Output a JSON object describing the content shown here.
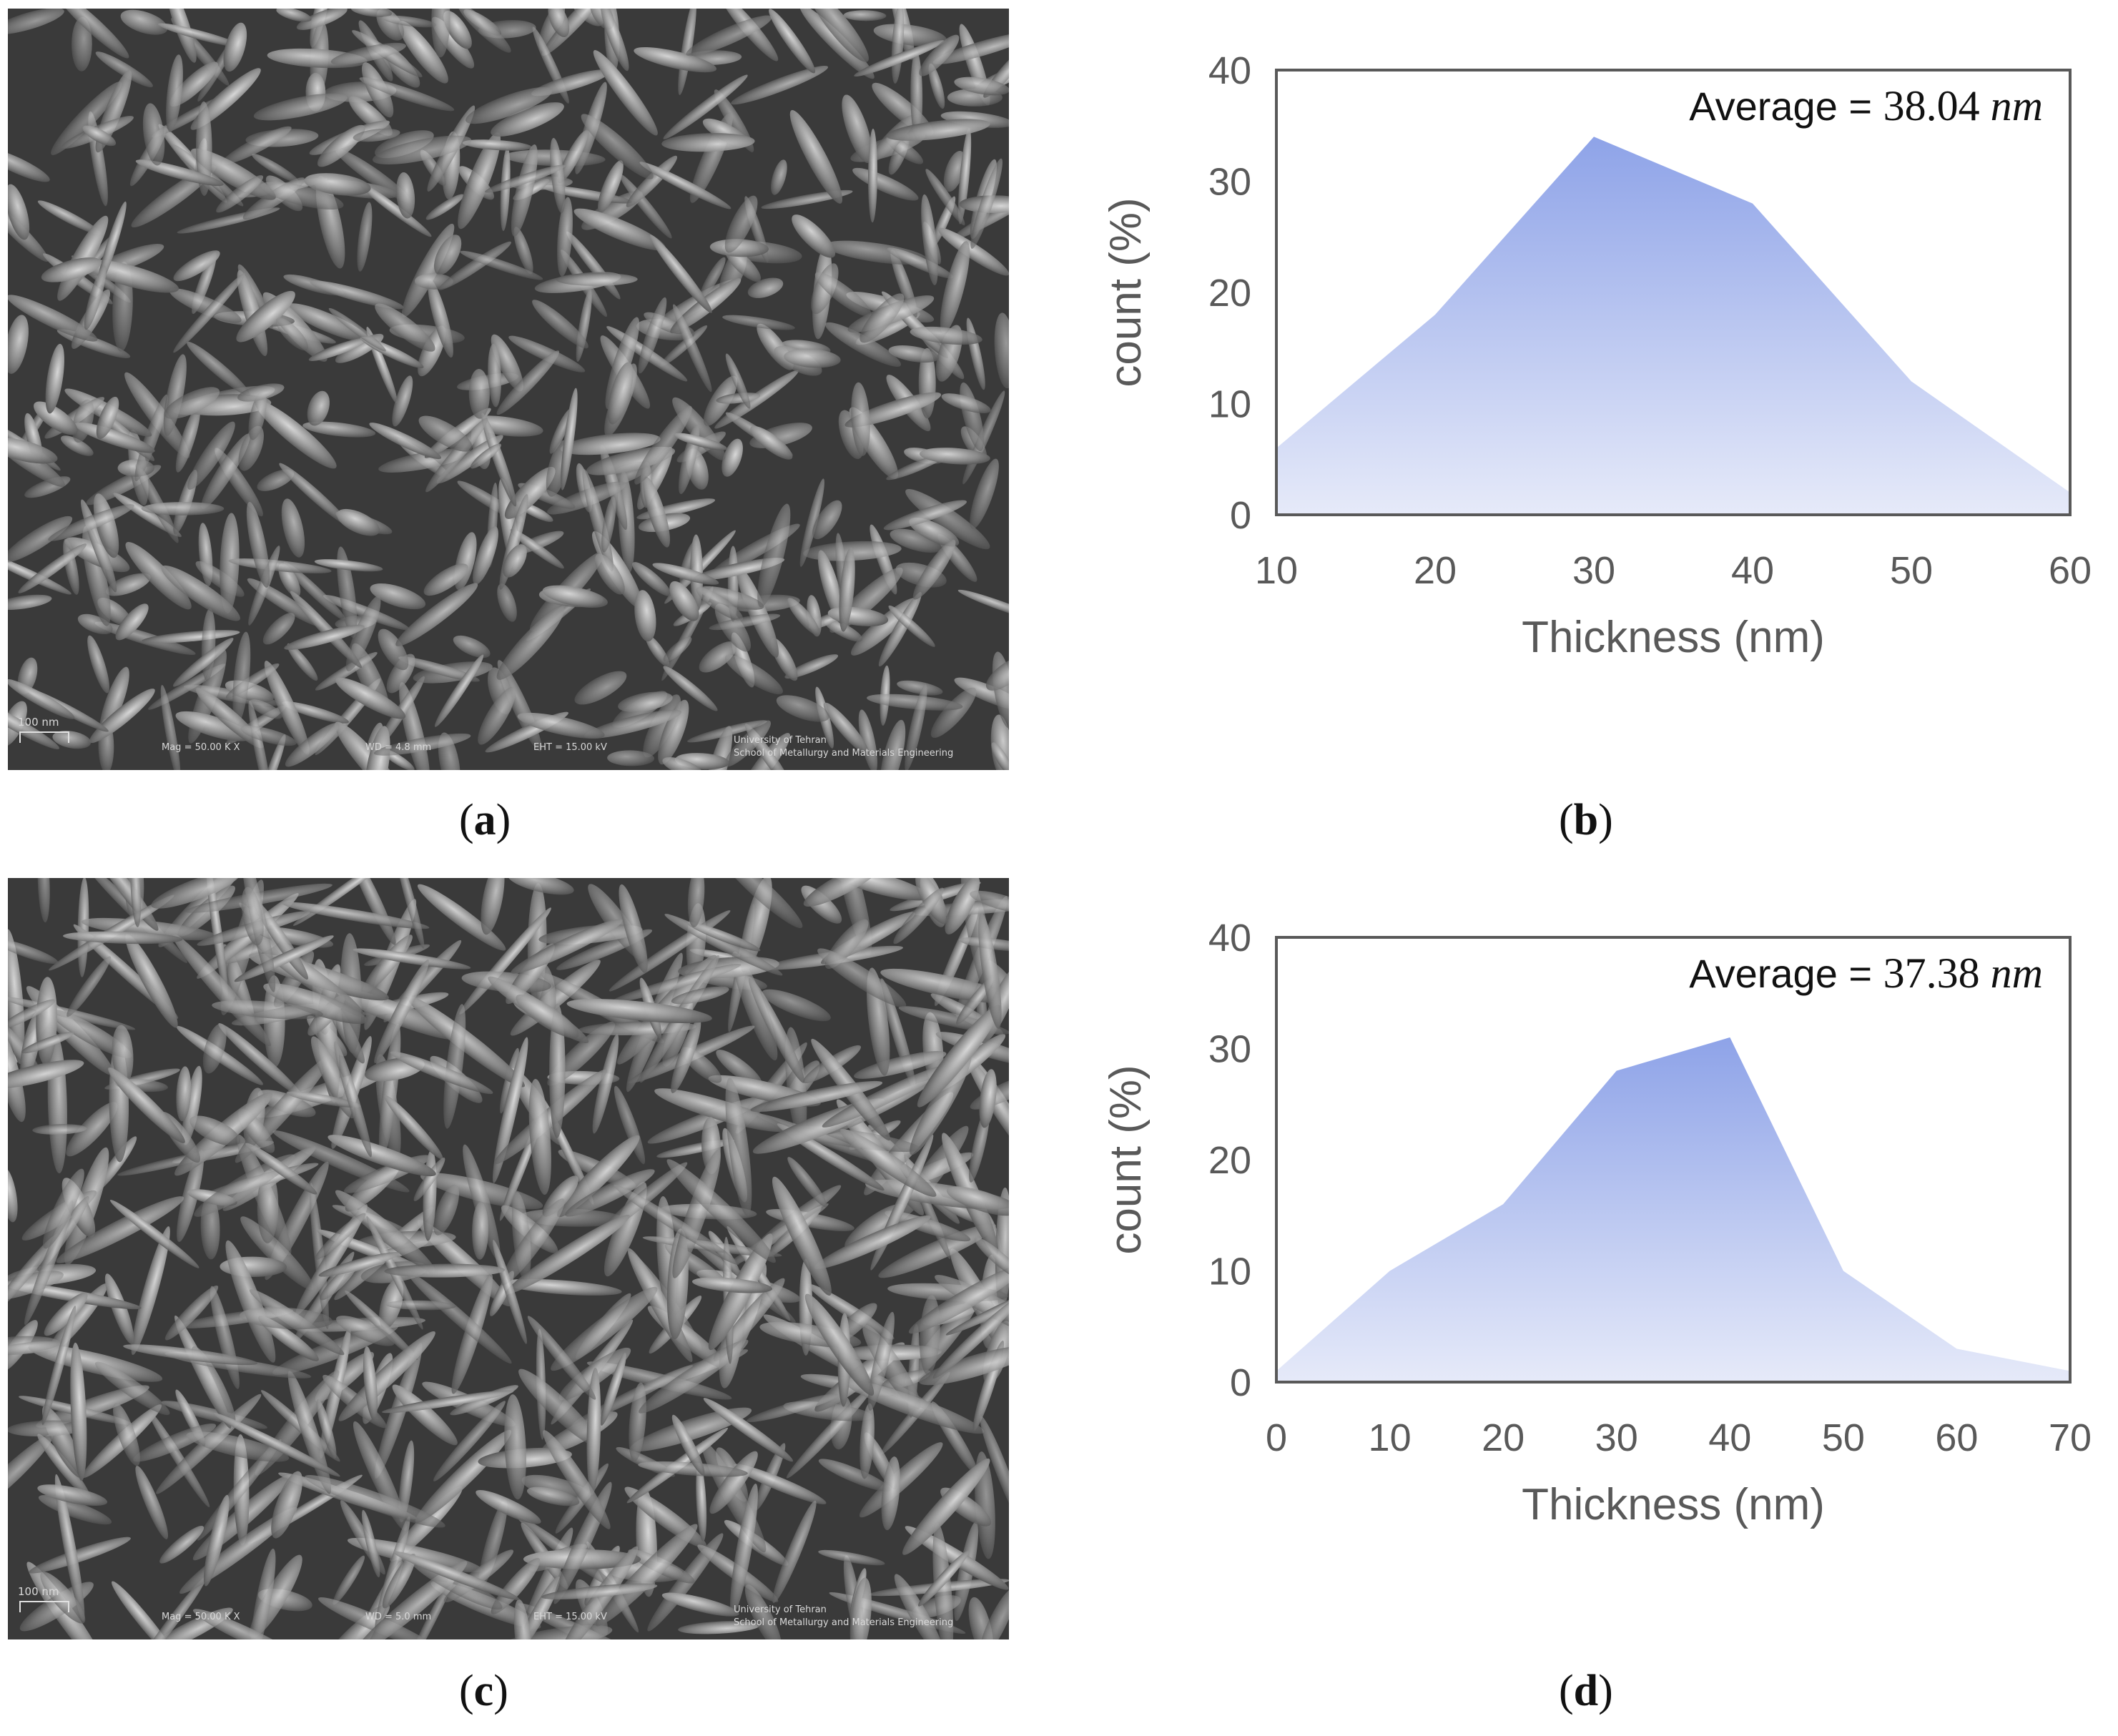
{
  "panels": {
    "a": {
      "label": "a",
      "scale_bar": "100 nm",
      "mag": "Mag = 50.00 K X",
      "wd": "WD = 4.8 mm",
      "eht": "EHT = 15.00 kV",
      "institution_line1": "University of Tehran",
      "institution_line2": "School of Metallurgy and Materials Engineering"
    },
    "b": {
      "label": "b"
    },
    "c": {
      "label": "c",
      "scale_bar": "100 nm",
      "mag": "Mag = 50.00 K X",
      "wd": "WD = 5.0 mm",
      "eht": "EHT = 15.00 kV",
      "institution_line1": "University of Tehran",
      "institution_line2": "School of Metallurgy and Materials Engineering"
    },
    "d": {
      "label": "d"
    }
  },
  "colors": {
    "fill_top": "#8ea3e8",
    "fill_bottom": "#e6eaf9",
    "frame": "#595959",
    "tick_text": "#595959"
  },
  "chart_data": [
    {
      "type": "area",
      "panel": "b",
      "x": [
        10,
        20,
        30,
        40,
        50,
        60
      ],
      "values": [
        6,
        18,
        34,
        28,
        12,
        2
      ],
      "xlim": [
        10,
        60
      ],
      "ylim": [
        0,
        40
      ],
      "xticks": [
        10,
        20,
        30,
        40,
        50,
        60
      ],
      "yticks": [
        0,
        10,
        20,
        30,
        40
      ],
      "xlabel": "Thickness (nm)",
      "ylabel": "count (%)",
      "annotation_label": "Average = ",
      "annotation_value": "38.04",
      "annotation_unit": "nm",
      "grid": false
    },
    {
      "type": "area",
      "panel": "d",
      "x": [
        0,
        10,
        20,
        30,
        40,
        50,
        60,
        70
      ],
      "values": [
        1,
        10,
        16,
        28,
        31,
        10,
        3,
        1
      ],
      "xlim": [
        0,
        70
      ],
      "ylim": [
        0,
        40
      ],
      "xticks": [
        0,
        10,
        20,
        30,
        40,
        50,
        60,
        70
      ],
      "yticks": [
        0,
        10,
        20,
        30,
        40
      ],
      "xlabel": "Thickness (nm)",
      "ylabel": "count (%)",
      "annotation_label": "Average = ",
      "annotation_value": "37.38",
      "annotation_unit": "nm",
      "grid": false
    }
  ]
}
